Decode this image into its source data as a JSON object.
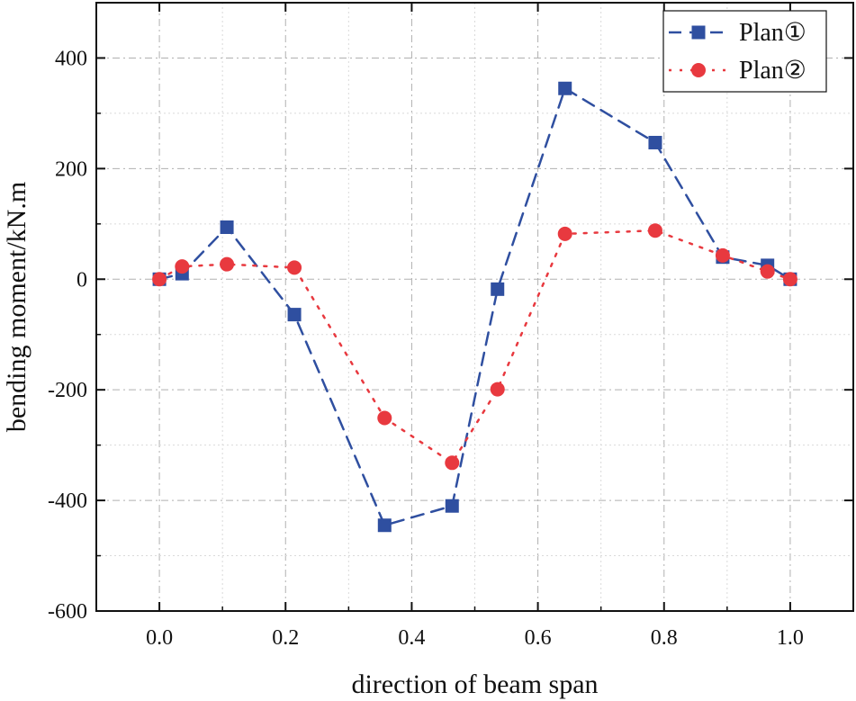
{
  "chart_data": {
    "type": "line",
    "title": "",
    "xlabel": "direction of beam span",
    "ylabel": "bending moment/kN.m",
    "xlim": [
      -0.1,
      1.1
    ],
    "ylim": [
      -600,
      500
    ],
    "xticks": [
      0.0,
      0.2,
      0.4,
      0.6,
      0.8,
      1.0
    ],
    "xtick_labels": [
      "0.0",
      "0.2",
      "0.4",
      "0.6",
      "0.8",
      "1.0"
    ],
    "yticks": [
      -600,
      -400,
      -200,
      0,
      200,
      400
    ],
    "ytick_labels": [
      "-600",
      "-400",
      "-200",
      "0",
      "200",
      "400"
    ],
    "grid": true,
    "legend_position": "top-right",
    "series": [
      {
        "name": "Plan①",
        "color": "#2f4fa0",
        "marker": "square",
        "line_style": "dashed",
        "x": [
          0.0,
          0.036,
          0.107,
          0.214,
          0.357,
          0.464,
          0.536,
          0.643,
          0.786,
          0.893,
          0.964,
          1.0
        ],
        "y": [
          0,
          10,
          94,
          -64,
          -445,
          -410,
          -18,
          345,
          247,
          40,
          25,
          0
        ]
      },
      {
        "name": "Plan②",
        "color": "#e8393f",
        "marker": "circle",
        "line_style": "dotted",
        "x": [
          0.0,
          0.036,
          0.107,
          0.214,
          0.357,
          0.464,
          0.536,
          0.643,
          0.786,
          0.893,
          0.964,
          1.0
        ],
        "y": [
          0,
          23,
          27,
          21,
          -251,
          -332,
          -199,
          82,
          88,
          43,
          14,
          0
        ]
      }
    ]
  }
}
